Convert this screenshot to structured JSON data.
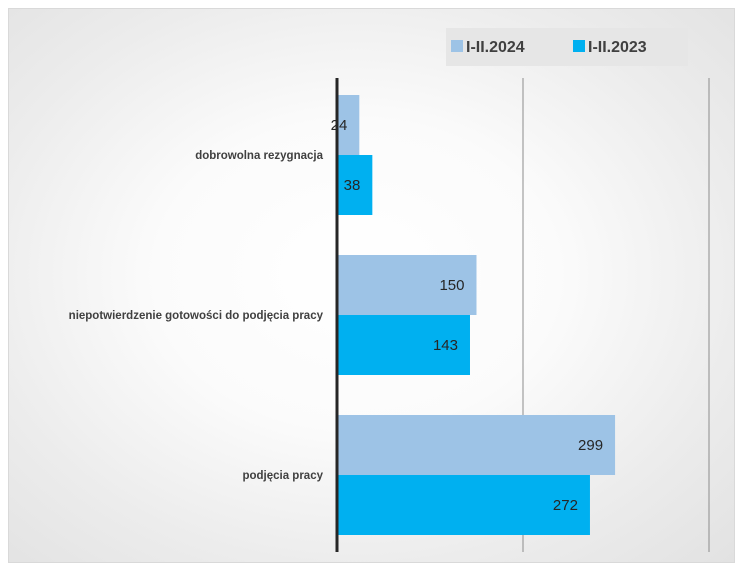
{
  "chart_data": {
    "type": "bar",
    "orientation": "horizontal",
    "categories": [
      "dobrowolna rezygnacja",
      "niepotwierdzenie gotowości do podjęcia pracy",
      "podjęcia pracy"
    ],
    "series": [
      {
        "name": "I-II.2024",
        "values": [
          24,
          150,
          299
        ],
        "color": "#9dc3e6"
      },
      {
        "name": "I-II.2023",
        "values": [
          38,
          143,
          272
        ],
        "color": "#00b0f0"
      }
    ],
    "title": "",
    "xlabel": "",
    "ylabel": "",
    "xlim": [
      0,
      400
    ],
    "grid": true,
    "legend_position": "top-right",
    "data_labels": true
  }
}
